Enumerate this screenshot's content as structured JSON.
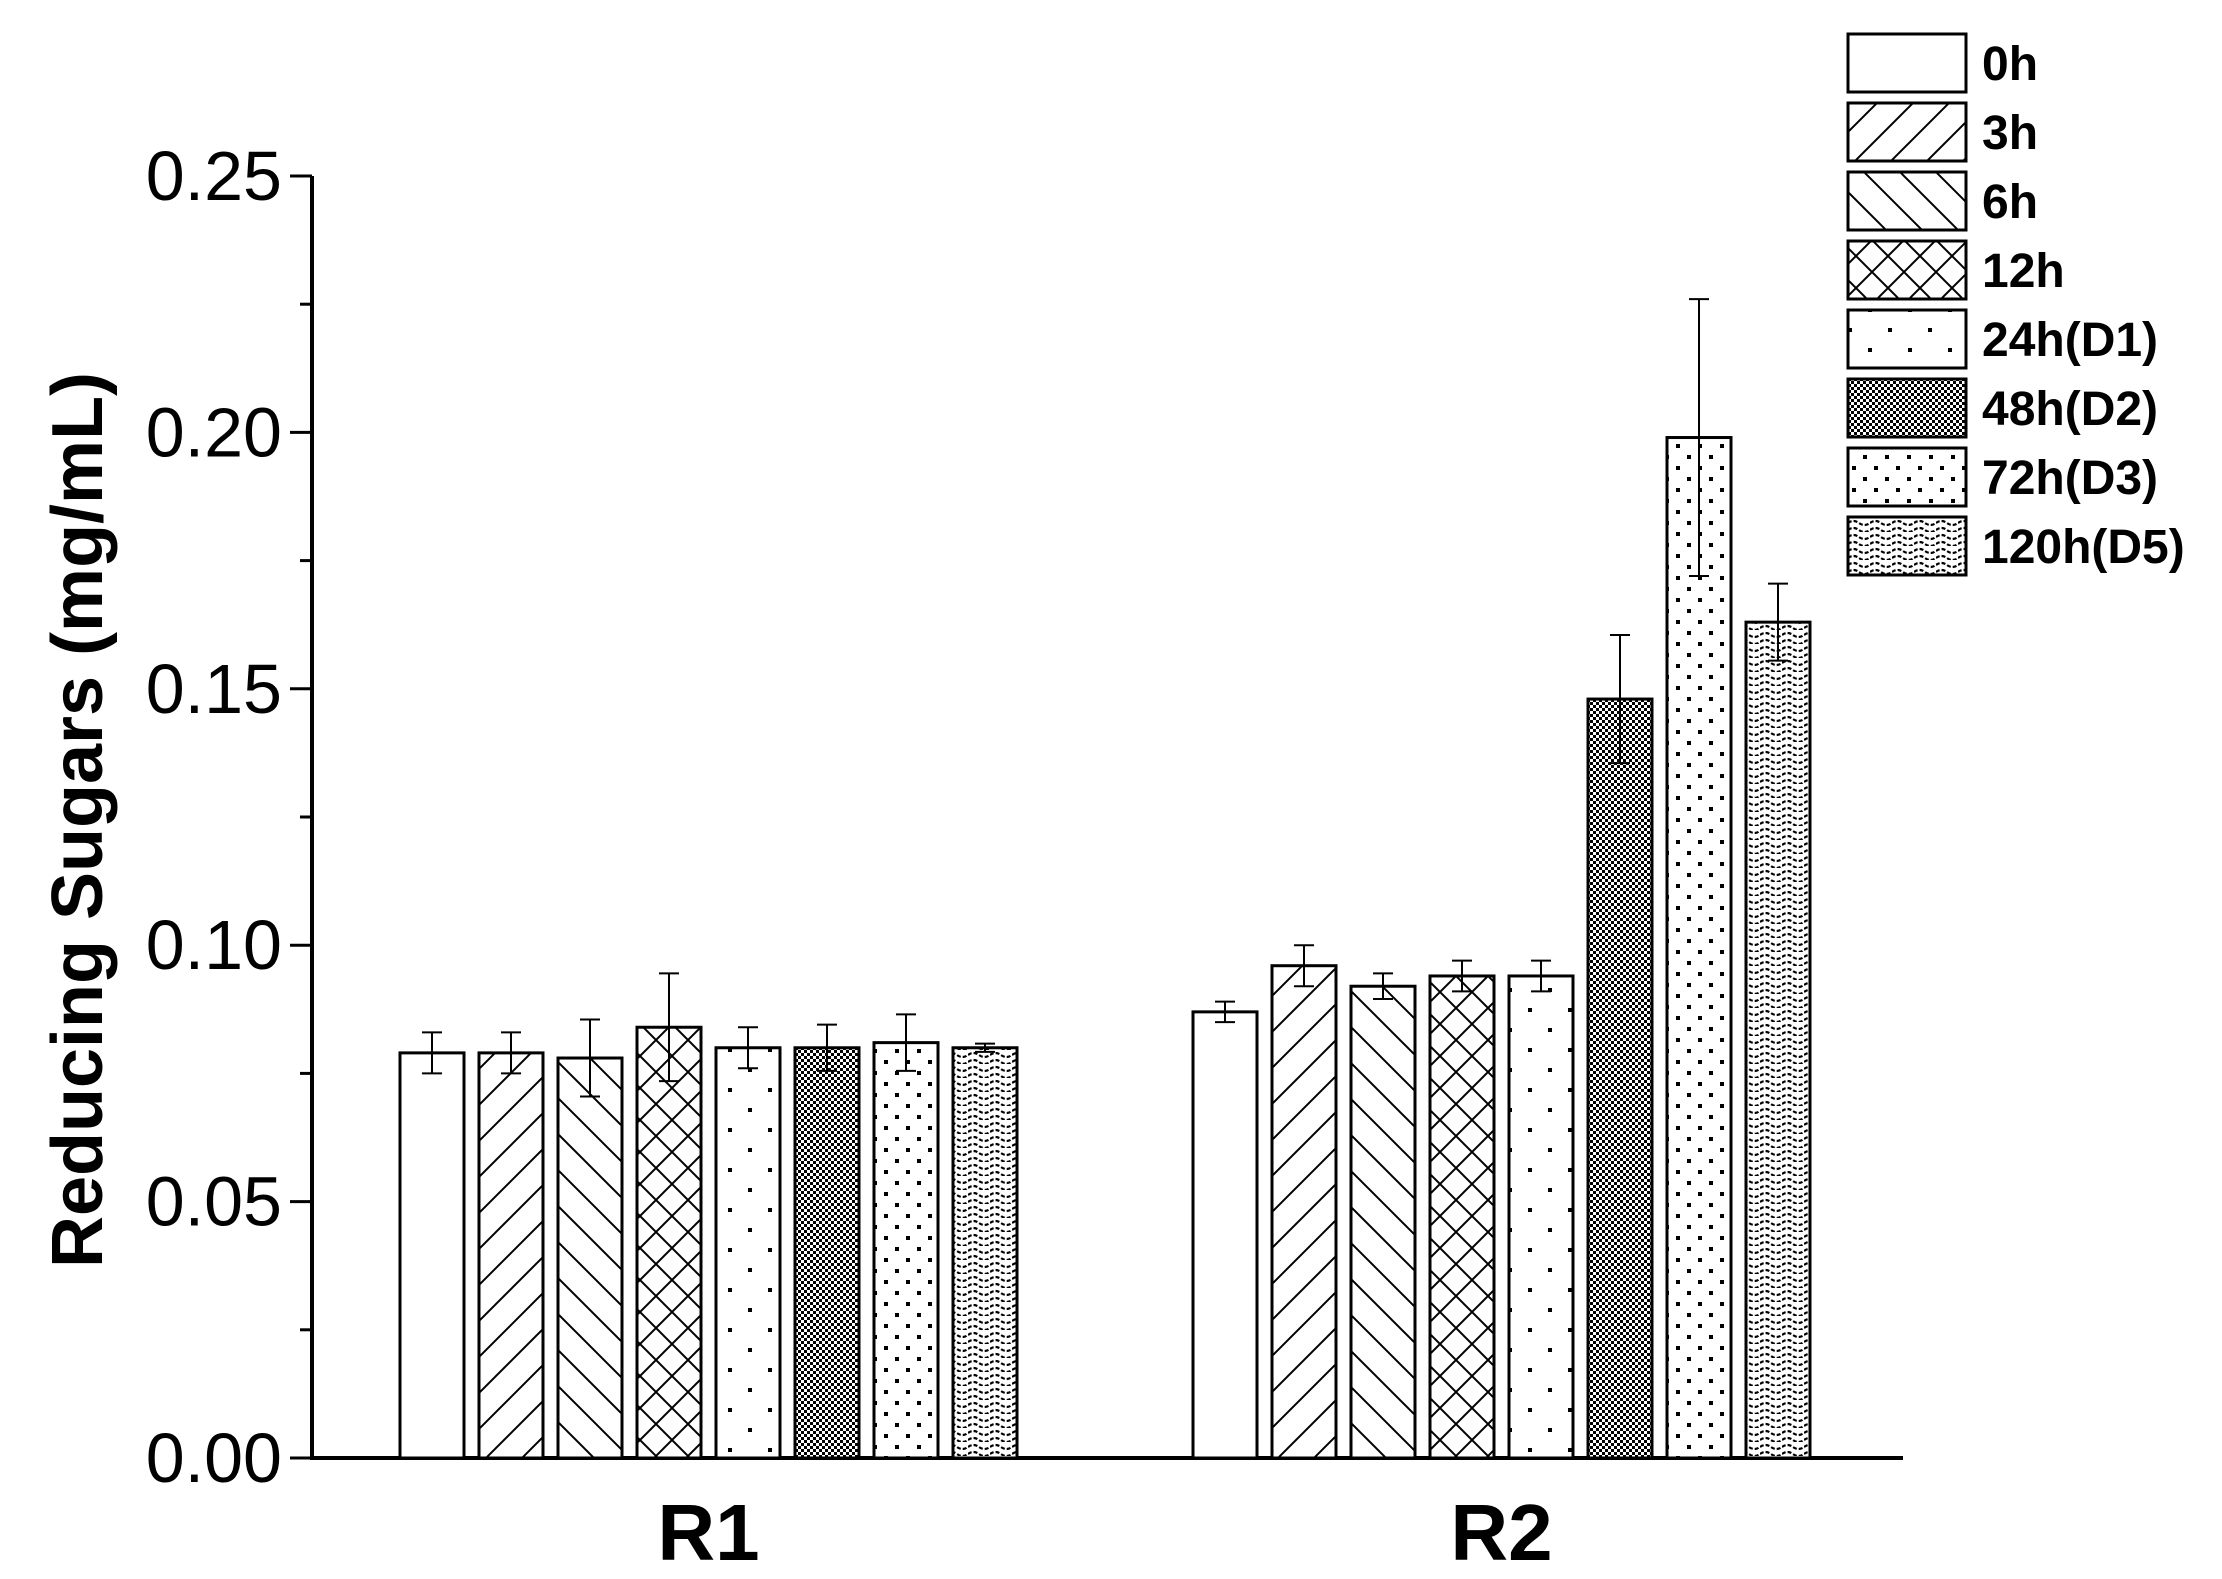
{
  "chart_data": {
    "type": "bar",
    "categories": [
      "R1",
      "R2"
    ],
    "ylabel": "Reducing Sugars (mg/mL)",
    "ylim": [
      0,
      0.25
    ],
    "yticks": [
      "0.00",
      "0.05",
      "0.10",
      "0.15",
      "0.20",
      "0.25"
    ],
    "ytick_values": [
      0,
      0.05,
      0.1,
      0.15,
      0.2,
      0.25
    ],
    "grid": false,
    "legend_position": "top-right",
    "error_bars": true,
    "series": [
      {
        "name": "0h",
        "pattern": "empty",
        "values": [
          0.079,
          0.087
        ],
        "errors": [
          0.004,
          0.002
        ]
      },
      {
        "name": "3h",
        "pattern": "forward-diagonal",
        "values": [
          0.079,
          0.096
        ],
        "errors": [
          0.004,
          0.004
        ]
      },
      {
        "name": "6h",
        "pattern": "backward-diagonal",
        "values": [
          0.078,
          0.092
        ],
        "errors": [
          0.0075,
          0.0025
        ]
      },
      {
        "name": "12h",
        "pattern": "crosshatch",
        "values": [
          0.084,
          0.094
        ],
        "errors": [
          0.0105,
          0.003
        ]
      },
      {
        "name": "24h(D1)",
        "pattern": "sparse-dots",
        "values": [
          0.08,
          0.094
        ],
        "errors": [
          0.004,
          0.003
        ]
      },
      {
        "name": "48h(D2)",
        "pattern": "dense-checker",
        "values": [
          0.08,
          0.148
        ],
        "errors": [
          0.0045,
          0.0125
        ]
      },
      {
        "name": "72h(D3)",
        "pattern": "medium-dots",
        "values": [
          0.081,
          0.199
        ],
        "errors": [
          0.0055,
          0.027
        ]
      },
      {
        "name": "120h(D5)",
        "pattern": "wavy",
        "values": [
          0.08,
          0.163
        ],
        "errors": [
          0.0008,
          0.0075
        ]
      }
    ]
  }
}
